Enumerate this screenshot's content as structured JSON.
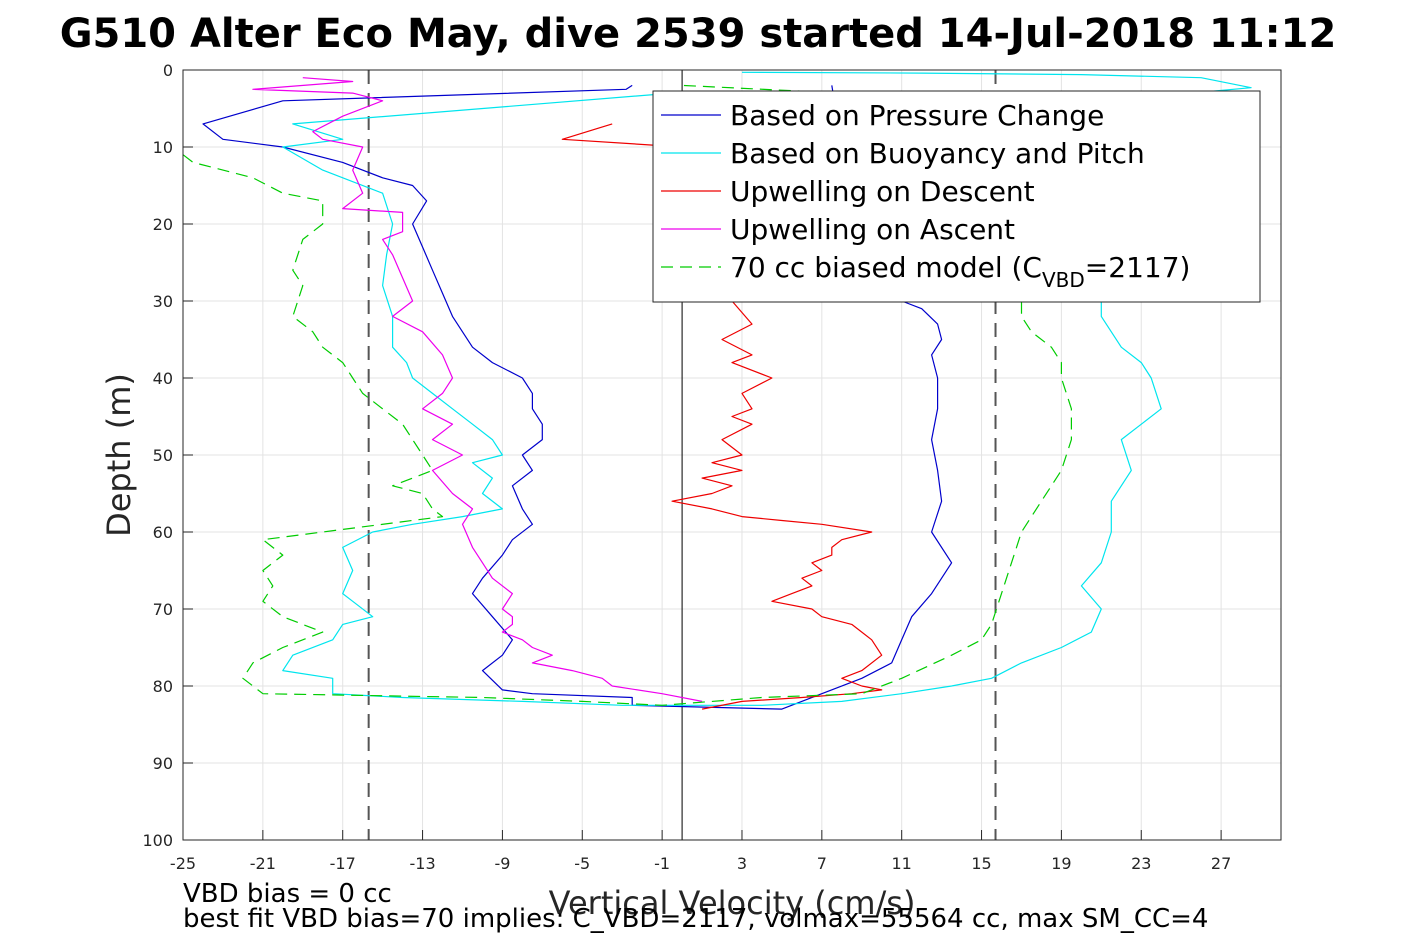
{
  "chart_data": {
    "type": "line",
    "title": "G510 Alter Eco May, dive 2539 started 14-Jul-2018 11:12",
    "xlabel": "Vertical Velocity (cm/s)",
    "ylabel": "Depth (m)",
    "xlim": [
      -25,
      30
    ],
    "ylim": [
      100,
      0
    ],
    "xticks": [
      -25,
      -21,
      -17,
      -13,
      -9,
      -5,
      -1,
      3,
      7,
      11,
      15,
      19,
      23,
      27
    ],
    "yticks": [
      0,
      10,
      20,
      30,
      40,
      50,
      60,
      70,
      80,
      90,
      100
    ],
    "grid": true,
    "legend_position": "top-right",
    "vertical_lines": {
      "zero": 0,
      "dashed": [
        -15.7,
        15.7
      ]
    },
    "series": [
      {
        "name": "Based on Pressure Change",
        "color": "#0000cc",
        "dash": "solid",
        "x": [
          -2.5,
          -2.8,
          -20.0,
          -24.0,
          -23.0,
          -20.0,
          -17.0,
          -15.0,
          -13.5,
          -12.8,
          -13.5,
          -13.0,
          -12.5,
          -12.0,
          -11.5,
          -11.0,
          -10.5,
          -9.5,
          -8.0,
          -7.5,
          -7.5,
          -7.0,
          -7.0,
          -8.0,
          -7.5,
          -8.5,
          -8.0,
          -7.5,
          -8.5,
          -9.0,
          -10.0,
          -10.5,
          -9.5,
          -8.5,
          -9.0,
          -10.0,
          -9.0,
          -7.5,
          -2.5,
          -2.5,
          5.0,
          7.0,
          9.0,
          10.5,
          11.0,
          11.5,
          12.5,
          13.5,
          12.5,
          13.0,
          12.8,
          12.5,
          12.8,
          12.8,
          12.5,
          13.0,
          12.8,
          12.0,
          11.0,
          10.5,
          9.5,
          9.0,
          8.5,
          8.0,
          7.5
        ],
        "y": [
          2,
          2.5,
          4,
          7,
          9,
          10,
          12,
          14,
          15,
          17,
          20,
          23,
          26,
          29,
          32,
          34,
          36,
          38,
          40,
          42,
          44,
          46,
          48,
          50,
          52,
          54,
          57,
          59,
          61,
          63,
          66,
          68,
          71,
          74,
          76,
          78,
          80.5,
          81,
          81.5,
          82.5,
          83,
          81,
          79,
          77,
          74,
          71,
          68,
          64,
          60,
          56,
          52,
          48,
          44,
          40,
          37,
          35,
          33,
          31,
          30,
          28,
          25,
          22,
          18,
          10,
          2
        ]
      },
      {
        "name": "Based on Buoyancy and Pitch",
        "color": "#00e5ee",
        "dash": "solid",
        "x": [
          -0.5,
          -19.5,
          -17.0,
          -20.0,
          -18.0,
          -15.0,
          -14.5,
          -14.8,
          -15.0,
          -14.5,
          -14.5,
          -13.8,
          -13.5,
          -12.5,
          -11.5,
          -10.5,
          -9.5,
          -9.0,
          -10.5,
          -9.5,
          -10.0,
          -9.0,
          -11.0,
          -13.5,
          -15.5,
          -17.0,
          -16.5,
          -17.0,
          -16.5,
          -15.5,
          -17.0,
          -17.5,
          -19.5,
          -20.0,
          -17.5,
          -17.5,
          -14.0,
          -8.0,
          -3.0,
          4.0,
          8.0,
          11.0,
          13.5,
          15.5,
          17.0,
          19.0,
          20.5,
          21.0,
          20.0,
          21.0,
          21.5,
          21.5,
          22.5,
          22.0,
          23.0,
          24.0,
          23.5,
          23.0,
          22.0,
          21.5,
          21.0,
          21.0,
          22.0,
          23.0,
          24.0,
          24.0,
          25.5,
          28.5,
          26.0,
          20.0,
          12.0,
          3.0
        ],
        "y": [
          3,
          7,
          9,
          10,
          13,
          16,
          20,
          24,
          28,
          32,
          36,
          38,
          40,
          42,
          44,
          46,
          48,
          50,
          51,
          53,
          55,
          57,
          58,
          59,
          60,
          62,
          65,
          68,
          69,
          71,
          72,
          74,
          76,
          78,
          79,
          81,
          81.5,
          82,
          82.5,
          82.5,
          82,
          81,
          80,
          79,
          77,
          75,
          73,
          70,
          67,
          64,
          60,
          56,
          52,
          48,
          46,
          44,
          40,
          38,
          36,
          34,
          32,
          28,
          20,
          10,
          6,
          4,
          3,
          2.3,
          1,
          0.6,
          0.4,
          0.3
        ]
      },
      {
        "name": "Upwelling on Descent",
        "color": "#ee0000",
        "dash": "solid",
        "x": [
          -3.5,
          -6.0,
          0.0,
          2.0,
          2.5,
          3.5,
          2.0,
          3.5,
          2.5,
          4.5,
          3.0,
          3.5,
          2.5,
          3.5,
          2.0,
          3.0,
          1.5,
          3.0,
          1.0,
          2.5,
          1.5,
          -0.5,
          1.5,
          3.0,
          5.0,
          7.0,
          9.5,
          8.0,
          7.5,
          7.5,
          6.5,
          7.0,
          6.0,
          6.5,
          5.5,
          4.5,
          6.5,
          7.0,
          8.5,
          9.5,
          10.0,
          9.0,
          8.0,
          9.0,
          10.0,
          8.5,
          6.0,
          3.0,
          1.0
        ],
        "y": [
          7,
          9,
          10,
          28,
          30,
          33,
          35,
          37,
          38,
          40,
          42,
          44,
          45,
          46,
          48,
          50,
          51,
          52,
          53,
          54,
          55,
          56,
          57,
          58,
          58.5,
          59,
          60,
          61,
          62,
          63,
          64,
          65,
          66,
          67,
          68,
          69,
          70,
          71,
          72,
          74,
          76,
          78,
          79,
          80,
          80.5,
          81,
          81.5,
          82,
          83
        ]
      },
      {
        "name": "Upwelling on Ascent",
        "color": "#ee00ee",
        "dash": "solid",
        "x": [
          -19.0,
          -16.5,
          -21.5,
          -16.5,
          -15.0,
          -17.0,
          -18.5,
          -18.0,
          -16.0,
          -16.5,
          -16.0,
          -17.0,
          -14.0,
          -14.0,
          -15.0,
          -14.5,
          -14.0,
          -13.5,
          -14.5,
          -13.0,
          -12.0,
          -11.5,
          -12.0,
          -13.0,
          -11.5,
          -12.5,
          -11.0,
          -12.5,
          -11.5,
          -10.5,
          -11.0,
          -10.5,
          -10.0,
          -9.5,
          -8.5,
          -9.0,
          -8.5,
          -8.5,
          -9.0,
          -8.0,
          -7.5,
          -6.5,
          -7.5,
          -5.5,
          -4.0,
          -3.5,
          -1.0,
          1.0
        ],
        "y": [
          1,
          1.5,
          2.5,
          3,
          4,
          6,
          8,
          9,
          10,
          13,
          16,
          18,
          18.5,
          21,
          22,
          24,
          27,
          30,
          32,
          34,
          37,
          40,
          42,
          44,
          46,
          48,
          50,
          52,
          55,
          57,
          59,
          62,
          64,
          66,
          68,
          70,
          71,
          72,
          73,
          74,
          75,
          76,
          77,
          78,
          79,
          80,
          81,
          82
        ]
      },
      {
        "name": "70 cc biased model (C_VBD=2117)",
        "legend_main": "70 cc biased model (C",
        "legend_sub": "VBD",
        "legend_end": "=2117)",
        "color": "#00cc00",
        "dash": "dashed",
        "x": [
          -26.0,
          -24.5,
          -21.5,
          -20.0,
          -18.0,
          -18.0,
          -19.0,
          -19.5,
          -19.0,
          -19.5,
          -18.5,
          -18.0,
          -17.0,
          -16.5,
          -16.0,
          -15.0,
          -14.0,
          -13.5,
          -13.0,
          -12.5,
          -14.5,
          -13.0,
          -12.5,
          -12.0,
          -18.0,
          -21.0,
          -20.0,
          -21.0,
          -20.5,
          -21.0,
          -20.0,
          -18.0,
          -20.0,
          -21.5,
          -22.0,
          -21.0,
          -10.0,
          -5.0,
          -1.0,
          4.0,
          9.0,
          11.0,
          13.5,
          15.0,
          15.5,
          16.0,
          16.5,
          17.0,
          18.0,
          19.0,
          19.5,
          19.5,
          19.0,
          19.0,
          18.5,
          17.5,
          17.0,
          17.0,
          15.0,
          8.0,
          0.0
        ],
        "y": [
          11,
          12,
          14,
          16,
          17,
          20,
          22,
          26,
          28,
          32,
          34,
          36,
          38,
          40,
          42,
          44,
          46,
          48,
          50,
          52,
          54,
          55,
          57,
          58,
          60,
          61,
          63,
          65,
          67,
          69,
          71,
          73,
          75,
          77,
          79,
          81,
          81.5,
          82,
          82.5,
          81.5,
          81,
          79,
          76,
          74,
          72,
          68,
          64,
          60,
          56,
          52,
          48,
          44,
          40,
          38,
          36,
          34,
          32,
          30,
          20,
          3,
          2
        ]
      }
    ],
    "footer_lines": [
      "VBD bias = 0 cc",
      "best fit VBD bias=70 implies: C_VBD=2117, volmax=55564 cc, max SM_CC=4"
    ]
  }
}
